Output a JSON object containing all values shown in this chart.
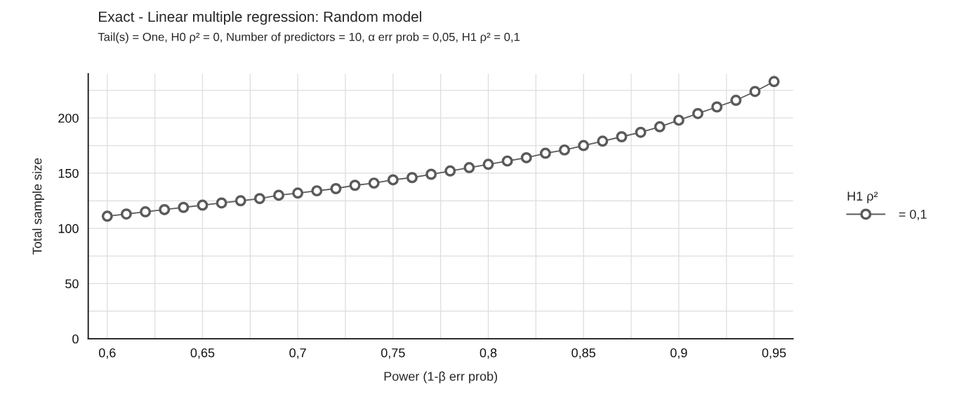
{
  "chart_data": {
    "type": "line",
    "title": "Exact - Linear multiple regression: Random model",
    "subtitle": "Tail(s) = One, H0 ρ² = 0, Number of predictors = 10, α err prob = 0,05, H1 ρ² = 0,1",
    "xlabel": "Power (1-β err prob)",
    "ylabel": "Total sample size",
    "legend_title": "H1 ρ²",
    "x": [
      0.6,
      0.61,
      0.62,
      0.63,
      0.64,
      0.65,
      0.66,
      0.67,
      0.68,
      0.69,
      0.7,
      0.71,
      0.72,
      0.73,
      0.74,
      0.75,
      0.76,
      0.77,
      0.78,
      0.79,
      0.8,
      0.81,
      0.82,
      0.83,
      0.84,
      0.85,
      0.86,
      0.87,
      0.88,
      0.89,
      0.9,
      0.91,
      0.92,
      0.93,
      0.94,
      0.95
    ],
    "series": [
      {
        "name": " = 0,1",
        "color": "#5a5a5a",
        "values": [
          111,
          113,
          115,
          117,
          119,
          121,
          123,
          125,
          127,
          130,
          132,
          134,
          136,
          139,
          141,
          144,
          146,
          149,
          152,
          155,
          158,
          161,
          164,
          168,
          171,
          175,
          179,
          183,
          187,
          192,
          198,
          204,
          210,
          216,
          224,
          233
        ]
      }
    ],
    "xlim": [
      0.59,
      0.96
    ],
    "xticks": [
      {
        "value": 0.6,
        "label": "0,6"
      },
      {
        "value": 0.625,
        "label": null
      },
      {
        "value": 0.65,
        "label": "0,65"
      },
      {
        "value": 0.675,
        "label": null
      },
      {
        "value": 0.7,
        "label": "0,7"
      },
      {
        "value": 0.725,
        "label": null
      },
      {
        "value": 0.75,
        "label": "0,75"
      },
      {
        "value": 0.775,
        "label": null
      },
      {
        "value": 0.8,
        "label": "0,8"
      },
      {
        "value": 0.825,
        "label": null
      },
      {
        "value": 0.85,
        "label": "0,85"
      },
      {
        "value": 0.875,
        "label": null
      },
      {
        "value": 0.9,
        "label": "0,9"
      },
      {
        "value": 0.925,
        "label": null
      },
      {
        "value": 0.95,
        "label": "0,95"
      }
    ],
    "ylim": [
      0,
      240
    ],
    "yticks": [
      0,
      {
        "value": 25,
        "label": null
      },
      50,
      {
        "value": 75,
        "label": null
      },
      100,
      {
        "value": 125,
        "label": null
      },
      150,
      {
        "value": 175,
        "label": null
      },
      200,
      {
        "value": 225,
        "label": null
      }
    ],
    "grid": true,
    "legend": "right",
    "marker": "circle",
    "line_style": "solid"
  }
}
